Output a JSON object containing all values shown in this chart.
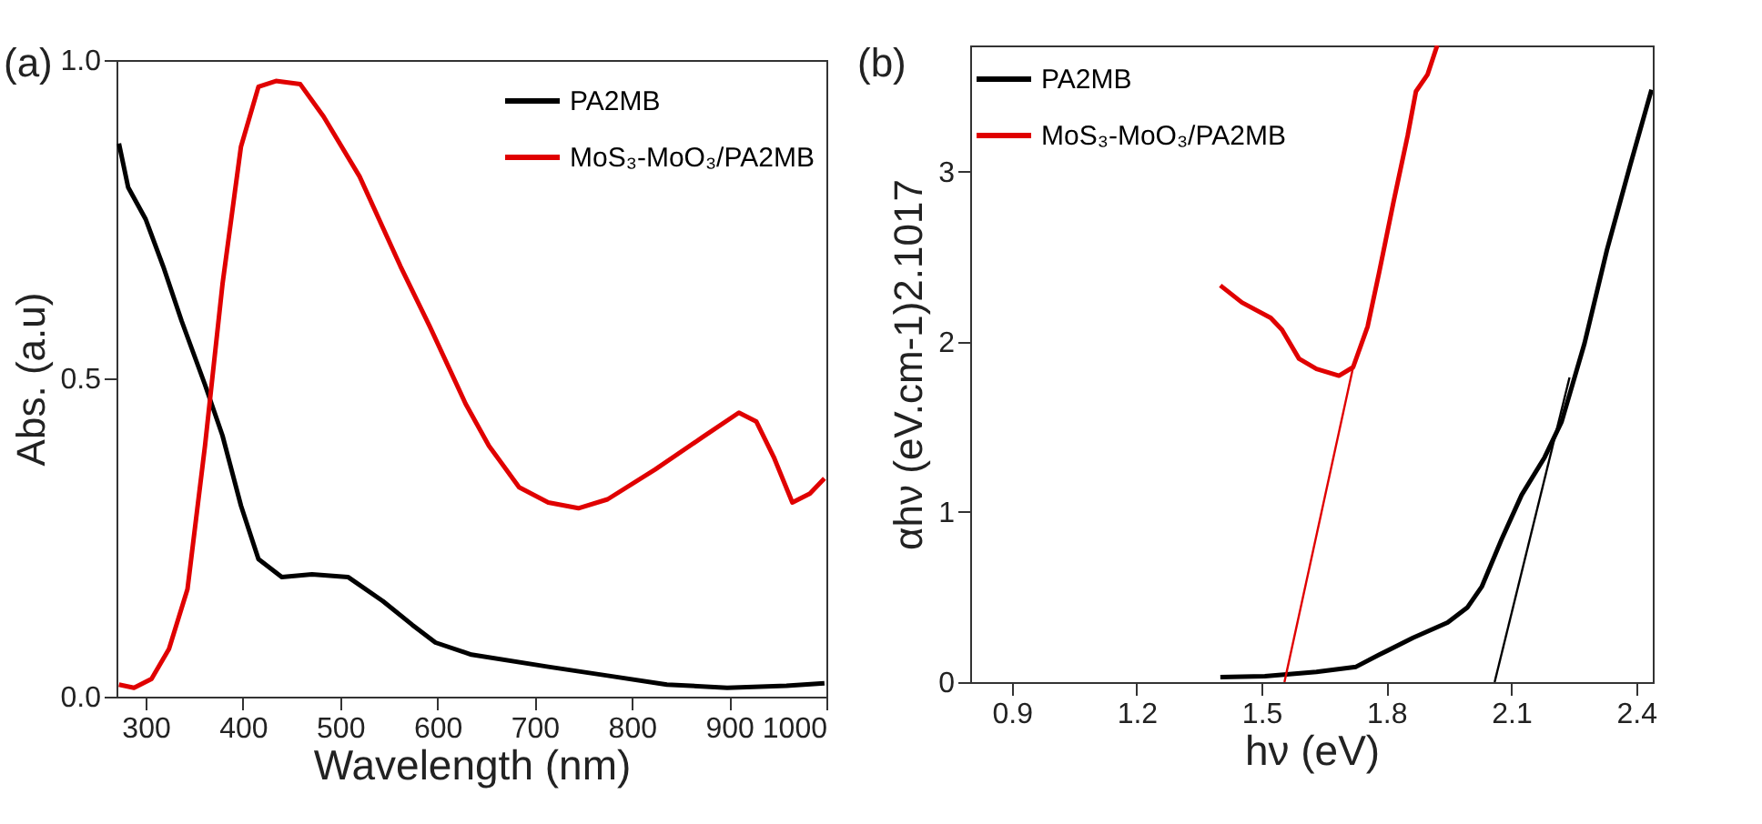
{
  "chart_data": [
    {
      "type": "line",
      "title": "(a)",
      "xlabel": "Wavelength (nm)",
      "ylabel": "Abs. (a.u)",
      "xlim": [
        270,
        1000
      ],
      "ylim": [
        0,
        1
      ],
      "xticks": [
        300,
        400,
        500,
        600,
        700,
        800,
        900,
        1000
      ],
      "yticks": [
        {
          "value": 0,
          "label": "0.0"
        },
        {
          "value": 0.5,
          "label": "0.5"
        },
        {
          "value": 1,
          "label": "1.0"
        }
      ],
      "legend": "top right",
      "series": [
        {
          "name": "PA2MB",
          "color": "#000000",
          "x": [
            272.5,
            282,
            300,
            318,
            337,
            361,
            379,
            398,
            416,
            440,
            471,
            508,
            544,
            574,
            598,
            635,
            714,
            775,
            836,
            898,
            959,
            998
          ],
          "values": [
            0.869,
            0.8,
            0.75,
            0.676,
            0.59,
            0.49,
            0.41,
            0.3,
            0.216,
            0.188,
            0.192,
            0.188,
            0.15,
            0.113,
            0.085,
            0.066,
            0.047,
            0.033,
            0.019,
            0.014,
            0.017,
            0.021
          ]
        },
        {
          "name": "MoS₃-MoO₃/PA2MB",
          "color": "#e00000",
          "x": [
            272.5,
            288,
            306,
            324,
            343,
            361,
            379,
            398,
            416,
            434,
            459,
            483,
            520,
            562,
            592,
            629,
            653,
            684,
            714,
            745,
            775,
            824,
            873,
            910,
            928,
            946,
            965,
            983,
            998
          ],
          "values": [
            0.019,
            0.014,
            0.028,
            0.075,
            0.169,
            0.394,
            0.648,
            0.864,
            0.958,
            0.967,
            0.962,
            0.911,
            0.817,
            0.676,
            0.582,
            0.46,
            0.394,
            0.329,
            0.305,
            0.296,
            0.31,
            0.357,
            0.408,
            0.446,
            0.432,
            0.376,
            0.305,
            0.319,
            0.343
          ]
        }
      ]
    },
    {
      "type": "line",
      "title": "(b)",
      "xlabel": "hν (eV)",
      "ylabel": "αhν (eV.cm-1)2.1017",
      "xlim": [
        0.8,
        2.44
      ],
      "ylim": [
        0,
        3.74
      ],
      "xticks": [
        0.9,
        1.2,
        1.5,
        1.8,
        2.1,
        2.4
      ],
      "yticks": [
        0,
        1,
        2,
        3
      ],
      "legend": "top left",
      "series": [
        {
          "name": "PA2MB",
          "color": "#000000",
          "x": [
            1.401,
            1.508,
            1.632,
            1.727,
            1.782,
            1.864,
            1.947,
            1.995,
            2.029,
            2.077,
            2.125,
            2.18,
            2.221,
            2.276,
            2.33,
            2.385,
            2.437
          ],
          "values": [
            0.03,
            0.035,
            0.06,
            0.09,
            0.16,
            0.26,
            0.35,
            0.44,
            0.56,
            0.84,
            1.1,
            1.32,
            1.53,
            1.99,
            2.54,
            3.03,
            3.48
          ]
        },
        {
          "name": "MoS₃-MoO₃/PA2MB",
          "color": "#e00000",
          "x": [
            1.401,
            1.453,
            1.522,
            1.549,
            1.59,
            1.632,
            1.686,
            1.72,
            1.755,
            1.782,
            1.817,
            1.851,
            1.871,
            1.899,
            1.922
          ],
          "values": [
            2.33,
            2.23,
            2.14,
            2.07,
            1.9,
            1.84,
            1.8,
            1.85,
            2.09,
            2.4,
            2.82,
            3.21,
            3.47,
            3.57,
            3.74
          ]
        },
        {
          "type": "line",
          "color": "#e00000",
          "x": [
            1.555,
            1.72
          ],
          "values": [
            0,
            1.85
          ]
        },
        {
          "type": "line",
          "color": "#000000",
          "x": [
            2.06,
            2.24
          ],
          "values": [
            0,
            1.79
          ]
        }
      ]
    }
  ]
}
